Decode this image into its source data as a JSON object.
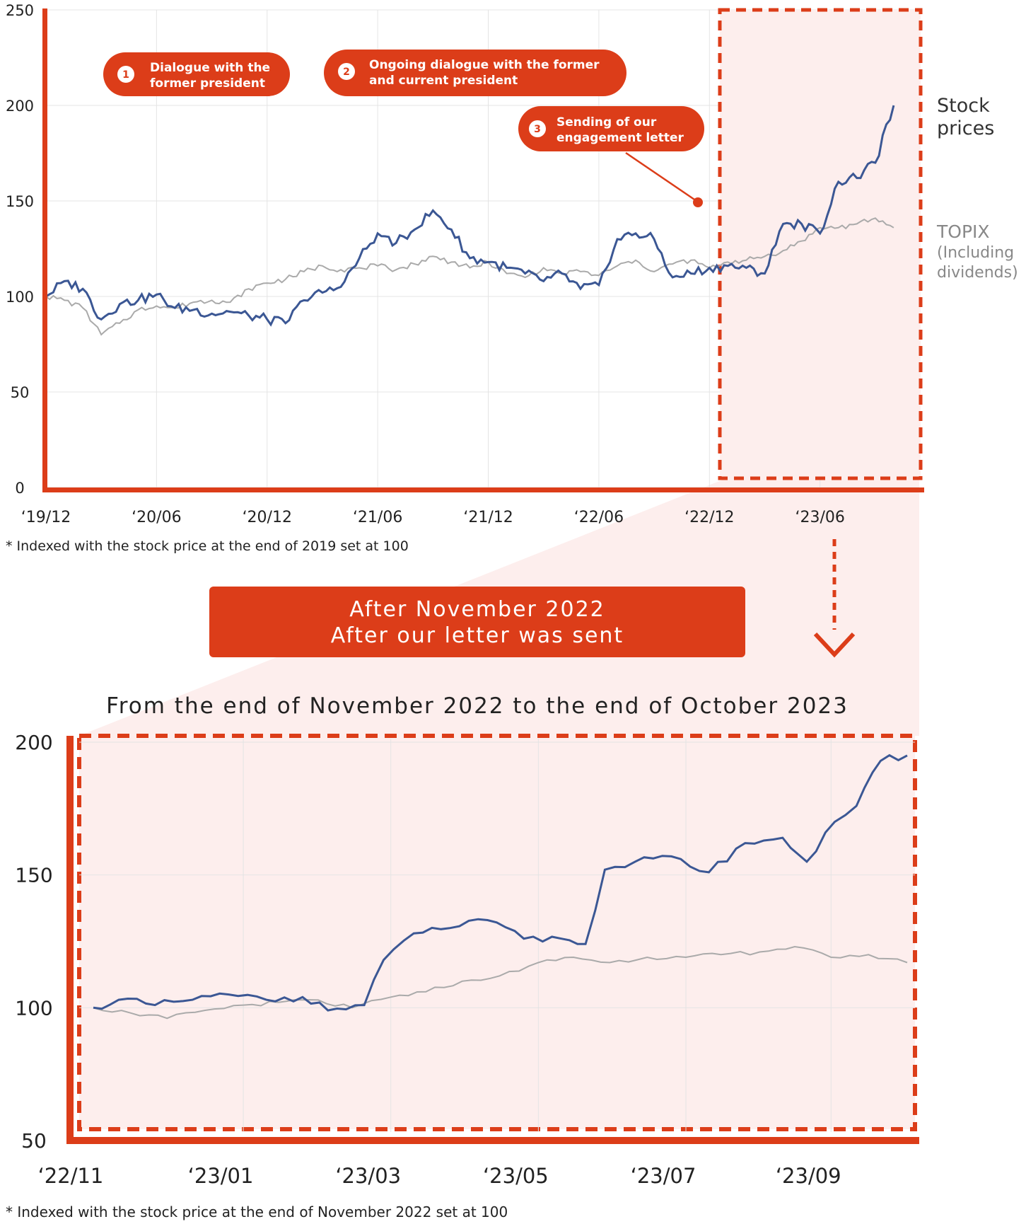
{
  "colors": {
    "accent": "#dc3d19",
    "stock_line": "#3b5794",
    "topix_line": "#aaaaaa",
    "highlight_fill": "#fdeeed",
    "grid": "#e4e4e4"
  },
  "top_footnote": "* Indexed with the stock price at the end of 2019 set at 100",
  "bottom_footnote": "* Indexed with the stock price at the end of November 2022 set at 100",
  "banner": {
    "line1": "After November 2022",
    "line2": "After our letter was sent"
  },
  "bottom_title": "From the end of November 2022 to the end of October 2023",
  "legend": {
    "stock_line1": "Stock",
    "stock_line2": "prices",
    "topix_line1": "TOPIX",
    "topix_line2": "(Including",
    "topix_line3": "dividends)"
  },
  "annotations": [
    {
      "num": "1",
      "line1": "Dialogue with the",
      "line2": "former president"
    },
    {
      "num": "2",
      "line1": "Ongoing dialogue with the former",
      "line2": "and current president"
    },
    {
      "num": "3",
      "line1": "Sending of our",
      "line2": "engagement letter"
    }
  ],
  "chart_data": [
    {
      "type": "line",
      "x_tick_labels": [
        "‘19/12",
        "‘20/06",
        "‘20/12",
        "‘21/06",
        "‘21/12",
        "‘22/06",
        "‘22/12",
        "‘23/06"
      ],
      "y_ticks": [
        0,
        50,
        100,
        150,
        200,
        250
      ],
      "ylim": [
        0,
        250
      ],
      "grid": true,
      "highlight_region": {
        "from": "2022-11",
        "to": "2023-10"
      },
      "series": [
        {
          "name": "Stock prices",
          "points": [
            [
              "2019-12",
              100
            ],
            [
              "2020-01",
              108
            ],
            [
              "2020-02",
              104
            ],
            [
              "2020-03",
              88
            ],
            [
              "2020-04",
              96
            ],
            [
              "2020-05",
              98
            ],
            [
              "2020-06",
              101
            ],
            [
              "2020-07",
              94
            ],
            [
              "2020-08",
              93
            ],
            [
              "2020-09",
              91
            ],
            [
              "2020-10",
              92
            ],
            [
              "2020-11",
              90
            ],
            [
              "2020-12",
              88
            ],
            [
              "2021-01",
              86
            ],
            [
              "2021-02",
              98
            ],
            [
              "2021-03",
              102
            ],
            [
              "2021-04",
              105
            ],
            [
              "2021-05",
              120
            ],
            [
              "2021-06",
              133
            ],
            [
              "2021-07",
              128
            ],
            [
              "2021-08",
              135
            ],
            [
              "2021-09",
              145
            ],
            [
              "2021-10",
              135
            ],
            [
              "2021-11",
              120
            ],
            [
              "2021-12",
              118
            ],
            [
              "2022-01",
              115
            ],
            [
              "2022-02",
              112
            ],
            [
              "2022-03",
              108
            ],
            [
              "2022-04",
              112
            ],
            [
              "2022-05",
              104
            ],
            [
              "2022-06",
              106
            ],
            [
              "2022-07",
              130
            ],
            [
              "2022-08",
              133
            ],
            [
              "2022-09",
              130
            ],
            [
              "2022-10",
              110
            ],
            [
              "2022-11",
              112
            ],
            [
              "2022-12",
              115
            ],
            [
              "2023-01",
              116
            ],
            [
              "2023-02",
              115
            ],
            [
              "2023-03",
              112
            ],
            [
              "2023-04",
              138
            ],
            [
              "2023-05",
              138
            ],
            [
              "2023-06",
              133
            ],
            [
              "2023-07",
              160
            ],
            [
              "2023-08",
              162
            ],
            [
              "2023-09",
              170
            ],
            [
              "2023-10",
              200
            ]
          ]
        },
        {
          "name": "TOPIX (Including dividends)",
          "points": [
            [
              "2019-12",
              100
            ],
            [
              "2020-01",
              98
            ],
            [
              "2020-02",
              94
            ],
            [
              "2020-03",
              80
            ],
            [
              "2020-04",
              86
            ],
            [
              "2020-05",
              93
            ],
            [
              "2020-06",
              95
            ],
            [
              "2020-07",
              94
            ],
            [
              "2020-08",
              97
            ],
            [
              "2020-09",
              98
            ],
            [
              "2020-10",
              97
            ],
            [
              "2020-11",
              104
            ],
            [
              "2020-12",
              107
            ],
            [
              "2021-01",
              109
            ],
            [
              "2021-02",
              113
            ],
            [
              "2021-03",
              116
            ],
            [
              "2021-04",
              114
            ],
            [
              "2021-05",
              115
            ],
            [
              "2021-06",
              116
            ],
            [
              "2021-07",
              114
            ],
            [
              "2021-08",
              117
            ],
            [
              "2021-09",
              121
            ],
            [
              "2021-10",
              118
            ],
            [
              "2021-11",
              115
            ],
            [
              "2021-12",
              118
            ],
            [
              "2022-01",
              112
            ],
            [
              "2022-02",
              110
            ],
            [
              "2022-03",
              115
            ],
            [
              "2022-04",
              112
            ],
            [
              "2022-05",
              113
            ],
            [
              "2022-06",
              111
            ],
            [
              "2022-07",
              116
            ],
            [
              "2022-08",
              119
            ],
            [
              "2022-09",
              113
            ],
            [
              "2022-10",
              117
            ],
            [
              "2022-11",
              119
            ],
            [
              "2022-12",
              115
            ],
            [
              "2023-01",
              118
            ],
            [
              "2023-02",
              119
            ],
            [
              "2023-03",
              121
            ],
            [
              "2023-04",
              124
            ],
            [
              "2023-05",
              129
            ],
            [
              "2023-06",
              136
            ],
            [
              "2023-07",
              136
            ],
            [
              "2023-08",
              138
            ],
            [
              "2023-09",
              141
            ],
            [
              "2023-10",
              136
            ]
          ]
        }
      ]
    },
    {
      "type": "line",
      "x_tick_labels": [
        "‘22/11",
        "‘23/01",
        "‘23/03",
        "‘23/05",
        "‘23/07",
        "‘23/09"
      ],
      "y_ticks": [
        50,
        100,
        150,
        200
      ],
      "ylim": [
        50,
        200
      ],
      "grid": true,
      "series": [
        {
          "name": "Stock prices",
          "points": [
            [
              "2022-11-30",
              100
            ],
            [
              "2022-12-10",
              103
            ],
            [
              "2022-12-25",
              101
            ],
            [
              "2023-01-10",
              103
            ],
            [
              "2023-01-25",
              105
            ],
            [
              "2023-02-10",
              103
            ],
            [
              "2023-02-25",
              104
            ],
            [
              "2023-03-05",
              99
            ],
            [
              "2023-03-20",
              101
            ],
            [
              "2023-03-28",
              118
            ],
            [
              "2023-04-10",
              128
            ],
            [
              "2023-04-25",
              130
            ],
            [
              "2023-05-10",
              133
            ],
            [
              "2023-05-25",
              126
            ],
            [
              "2023-06-10",
              126
            ],
            [
              "2023-06-20",
              124
            ],
            [
              "2023-06-28",
              152
            ],
            [
              "2023-07-10",
              155
            ],
            [
              "2023-07-25",
              157
            ],
            [
              "2023-08-10",
              151
            ],
            [
              "2023-08-25",
              162
            ],
            [
              "2023-09-10",
              164
            ],
            [
              "2023-09-20",
              155
            ],
            [
              "2023-10-01",
              170
            ],
            [
              "2023-10-10",
              176
            ],
            [
              "2023-10-20",
              193
            ],
            [
              "2023-10-31",
              195
            ]
          ]
        },
        {
          "name": "TOPIX (Including dividends)",
          "points": [
            [
              "2022-11-30",
              100
            ],
            [
              "2022-12-15",
              98
            ],
            [
              "2022-12-30",
              96
            ],
            [
              "2023-01-15",
              99
            ],
            [
              "2023-01-31",
              101
            ],
            [
              "2023-02-15",
              102
            ],
            [
              "2023-02-28",
              103
            ],
            [
              "2023-03-15",
              100
            ],
            [
              "2023-03-31",
              104
            ],
            [
              "2023-04-15",
              106
            ],
            [
              "2023-04-30",
              110
            ],
            [
              "2023-05-15",
              112
            ],
            [
              "2023-05-31",
              117
            ],
            [
              "2023-06-15",
              119
            ],
            [
              "2023-06-30",
              117
            ],
            [
              "2023-07-15",
              119
            ],
            [
              "2023-07-31",
              119
            ],
            [
              "2023-08-15",
              120
            ],
            [
              "2023-08-31",
              121
            ],
            [
              "2023-09-15",
              123
            ],
            [
              "2023-09-30",
              119
            ],
            [
              "2023-10-15",
              120
            ],
            [
              "2023-10-31",
              117
            ]
          ]
        }
      ]
    }
  ]
}
